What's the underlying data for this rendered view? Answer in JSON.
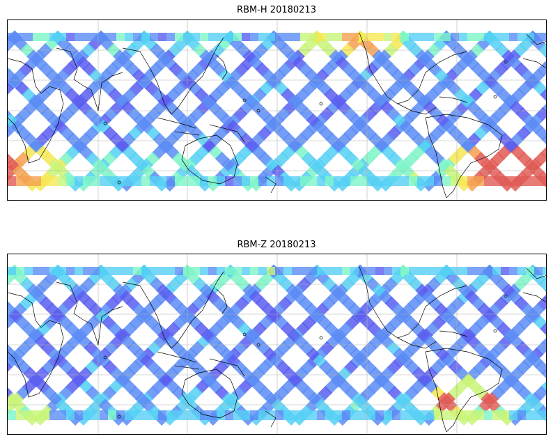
{
  "figure": {
    "panels": [
      {
        "title": "RBM-H 20180213",
        "hot_spots": "southern"
      },
      {
        "title": "RBM-Z 20180213",
        "hot_spots": "weak"
      }
    ],
    "colormap": [
      "#5a5ef0",
      "#5a8cf5",
      "#55d0f5",
      "#7ef5c8",
      "#c8f578",
      "#f5e855",
      "#f5a050",
      "#e05a55"
    ],
    "coastline_color": "#000000",
    "gridline_color": "#b0b0b0"
  }
}
